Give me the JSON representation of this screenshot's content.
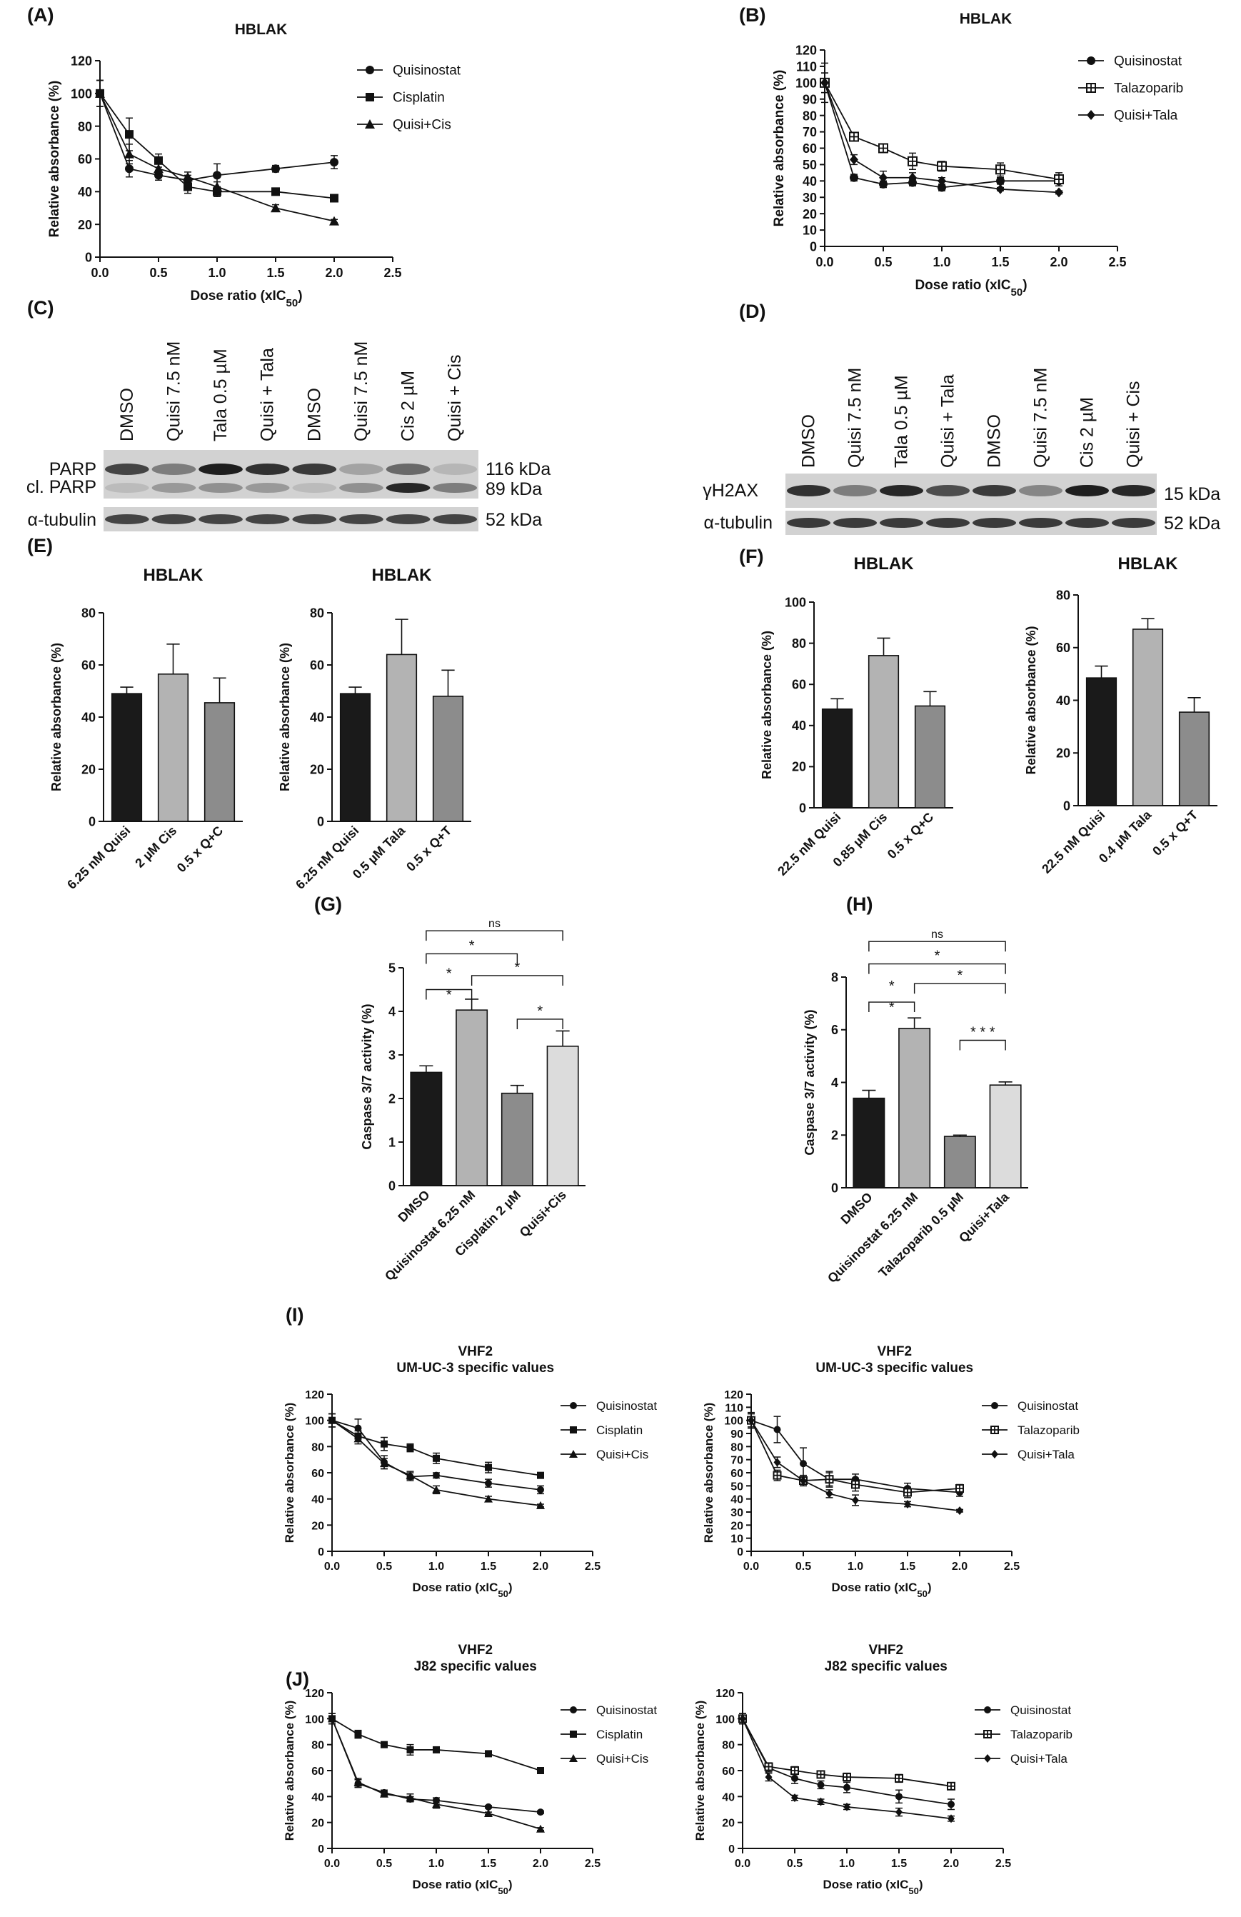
{
  "panel_labels": [
    "(A)",
    "(B)",
    "(C)",
    "(D)",
    "(E)",
    "(F)",
    "(G)",
    "(H)",
    "(I)",
    "(J)"
  ],
  "colors": {
    "black": "#1a1a1a",
    "dark_gray": "#555555",
    "mid_gray": "#8c8c8c",
    "light_gray": "#b3b3b3",
    "pale_gray": "#dcdcdc"
  },
  "chart_data": [
    {
      "id": "A",
      "type": "line",
      "title": "HBLAK",
      "xlabel": "Dose ratio (xIC",
      "xlabel_sub": "50",
      "xlabel_end": ")",
      "ylabel": "Relative absorbance (%)",
      "xlim": [
        0,
        2.5
      ],
      "ylim": [
        0,
        120
      ],
      "xticks": [
        "0.0",
        "0.5",
        "1.0",
        "1.5",
        "2.0",
        "2.5"
      ],
      "yticks": [
        "0",
        "20",
        "40",
        "60",
        "80",
        "100",
        "120"
      ],
      "legend": "right",
      "series": [
        {
          "name": "Quisinostat",
          "marker": "circle",
          "x": [
            0,
            0.25,
            0.5,
            0.75,
            1.0,
            1.5,
            2.0
          ],
          "y": [
            100,
            54,
            50,
            47,
            50,
            54,
            58
          ],
          "err": [
            8,
            5,
            3,
            3,
            7,
            2,
            4
          ]
        },
        {
          "name": "Cisplatin",
          "marker": "square",
          "x": [
            0,
            0.25,
            0.5,
            0.75,
            1.0,
            1.5,
            2.0
          ],
          "y": [
            100,
            75,
            59,
            43,
            40,
            40,
            36
          ],
          "err": [
            8,
            10,
            4,
            4,
            3,
            2,
            2
          ]
        },
        {
          "name": "Quisi+Cis",
          "marker": "triangle",
          "x": [
            0,
            0.25,
            0.5,
            0.75,
            1.0,
            1.5,
            2.0
          ],
          "y": [
            100,
            63,
            54,
            49,
            43,
            30,
            22
          ],
          "err": [
            8,
            6,
            4,
            3,
            3,
            2,
            1
          ]
        }
      ]
    },
    {
      "id": "B",
      "type": "line",
      "title": "HBLAK",
      "xlabel": "Dose ratio (xIC",
      "xlabel_sub": "50",
      "xlabel_end": ")",
      "ylabel": "Relative absorbance (%)",
      "xlim": [
        0,
        2.5
      ],
      "ylim": [
        0,
        120
      ],
      "xticks": [
        "0.0",
        "0.5",
        "1.0",
        "1.5",
        "2.0",
        "2.5"
      ],
      "yticks": [
        "0",
        "10",
        "20",
        "30",
        "40",
        "50",
        "60",
        "70",
        "80",
        "90",
        "100",
        "110",
        "120"
      ],
      "legend": "right",
      "series": [
        {
          "name": "Quisinostat",
          "marker": "circle",
          "x": [
            0,
            0.25,
            0.5,
            0.75,
            1.0,
            1.5,
            2.0
          ],
          "y": [
            100,
            42,
            38,
            39,
            36,
            40,
            40
          ],
          "err": [
            12,
            2,
            2,
            2,
            2,
            2,
            3
          ]
        },
        {
          "name": "Talazoparib",
          "marker": "boxsq",
          "x": [
            0,
            0.25,
            0.5,
            0.75,
            1.0,
            1.5,
            2.0
          ],
          "y": [
            100,
            67,
            60,
            52,
            49,
            47,
            41
          ],
          "err": [
            6,
            2,
            2,
            5,
            3,
            4,
            4
          ]
        },
        {
          "name": "Quisi+Tala",
          "marker": "diamond",
          "x": [
            0,
            0.25,
            0.5,
            0.75,
            1.0,
            1.5,
            2.0
          ],
          "y": [
            100,
            53,
            42,
            42,
            40,
            35,
            33
          ],
          "err": [
            6,
            3,
            4,
            3,
            2,
            1,
            1
          ]
        }
      ]
    },
    {
      "id": "E1",
      "type": "bar",
      "title": "HBLAK",
      "ylabel": "Relative absorbance (%)",
      "ylim": [
        0,
        80
      ],
      "yticks": [
        "0",
        "20",
        "40",
        "60",
        "80"
      ],
      "categories": [
        "6.25 nM Quisi",
        "2 µM Cis",
        "0.5 x Q+C"
      ],
      "values": [
        49,
        56.5,
        45.5
      ],
      "err": [
        2.5,
        11.5,
        9.5
      ],
      "bar_colors": [
        "#1a1a1a",
        "#b3b3b3",
        "#8c8c8c"
      ]
    },
    {
      "id": "E2",
      "type": "bar",
      "title": "HBLAK",
      "ylabel": "Relative absorbance (%)",
      "ylim": [
        0,
        80
      ],
      "yticks": [
        "0",
        "20",
        "40",
        "60",
        "80"
      ],
      "categories": [
        "6.25 nM Quisi",
        "0.5 µM Tala",
        "0.5 x Q+T"
      ],
      "values": [
        49,
        64,
        48
      ],
      "err": [
        2.5,
        13.5,
        10
      ],
      "bar_colors": [
        "#1a1a1a",
        "#b3b3b3",
        "#8c8c8c"
      ]
    },
    {
      "id": "F1",
      "type": "bar",
      "title": "HBLAK",
      "ylabel": "Relative absorbance (%)",
      "ylim": [
        0,
        100
      ],
      "yticks": [
        "0",
        "20",
        "40",
        "60",
        "80",
        "100"
      ],
      "categories": [
        "22.5 nM Quisi",
        "0.85 µM Cis",
        "0.5 x Q+C"
      ],
      "values": [
        48,
        74,
        49.5
      ],
      "err": [
        5,
        8.5,
        7
      ],
      "bar_colors": [
        "#1a1a1a",
        "#b3b3b3",
        "#8c8c8c"
      ]
    },
    {
      "id": "F2",
      "type": "bar",
      "title": "HBLAK",
      "ylabel": "Relative absorbance (%)",
      "ylim": [
        0,
        80
      ],
      "yticks": [
        "0",
        "20",
        "40",
        "60",
        "80"
      ],
      "categories": [
        "22.5 nM Quisi",
        "0.4 µM Tala",
        "0.5 x Q+T"
      ],
      "values": [
        48.5,
        67,
        35.5
      ],
      "err": [
        4.5,
        4,
        5.5
      ],
      "bar_colors": [
        "#1a1a1a",
        "#b3b3b3",
        "#8c8c8c"
      ]
    },
    {
      "id": "G",
      "type": "bar",
      "title": "",
      "ylabel": "Caspase 3/7 activity (%)",
      "ylim": [
        0,
        5
      ],
      "yticks": [
        "0",
        "1",
        "2",
        "3",
        "4",
        "5"
      ],
      "categories": [
        "DMSO",
        "Quisinostat 6.25 nM",
        "Cisplatin 2 µM",
        "Quisi+Cis"
      ],
      "values": [
        2.6,
        4.03,
        2.12,
        3.2
      ],
      "err": [
        0.15,
        0.25,
        0.18,
        0.35
      ],
      "bar_colors": [
        "#1a1a1a",
        "#b3b3b3",
        "#8c8c8c",
        "#dcdcdc"
      ],
      "brackets": [
        {
          "from": 0,
          "to": 3,
          "label": "ns",
          "y": 5.85
        },
        {
          "from": 0,
          "to": 2,
          "label": "*",
          "y": 5.32
        },
        {
          "from": 1,
          "to": 3,
          "label": "*",
          "y": 4.82
        },
        {
          "from": 0,
          "to": 1,
          "label": "* *",
          "y": 4.5
        },
        {
          "from": 2,
          "to": 3,
          "label": "*",
          "y": 3.82
        }
      ]
    },
    {
      "id": "H",
      "type": "bar",
      "title": "",
      "ylabel": "Caspase 3/7 activity (%)",
      "ylim": [
        0,
        8
      ],
      "yticks": [
        "0",
        "2",
        "4",
        "6",
        "8"
      ],
      "categories": [
        "DMSO",
        "Quisinostat 6.25 nM",
        "Talazoparib 0.5 µM",
        "Quisi+Tala"
      ],
      "values": [
        3.4,
        6.05,
        1.95,
        3.9
      ],
      "err": [
        0.3,
        0.4,
        0.05,
        0.12
      ],
      "bar_colors": [
        "#1a1a1a",
        "#b3b3b3",
        "#8c8c8c",
        "#dcdcdc"
      ],
      "brackets": [
        {
          "from": 0,
          "to": 3,
          "label": "ns",
          "y": 9.35
        },
        {
          "from": 0,
          "to": 3,
          "label": "*",
          "y": 8.5
        },
        {
          "from": 1,
          "to": 3,
          "label": "*",
          "y": 7.75
        },
        {
          "from": 0,
          "to": 1,
          "label": "* *",
          "y": 7.05
        },
        {
          "from": 2,
          "to": 3,
          "label": "* * *",
          "y": 5.6
        }
      ]
    },
    {
      "id": "I1",
      "type": "line",
      "title": "VHF2\nUM-UC-3 specific values",
      "xlabel": "Dose ratio (xIC",
      "xlabel_sub": "50",
      "xlabel_end": ")",
      "ylabel": "Relative absorbance (%)",
      "xlim": [
        0,
        2.5
      ],
      "ylim": [
        0,
        120
      ],
      "xticks": [
        "0.0",
        "0.5",
        "1.0",
        "1.5",
        "2.0",
        "2.5"
      ],
      "yticks": [
        "0",
        "20",
        "40",
        "60",
        "80",
        "100",
        "120"
      ],
      "legend": "right",
      "series": [
        {
          "name": "Quisinostat",
          "marker": "circle",
          "x": [
            0,
            0.25,
            0.5,
            0.75,
            1.0,
            1.5,
            2.0
          ],
          "y": [
            100,
            94,
            68,
            57,
            58,
            52,
            47
          ],
          "err": [
            5,
            7,
            5,
            3,
            2,
            3,
            3
          ]
        },
        {
          "name": "Cisplatin",
          "marker": "square",
          "x": [
            0,
            0.25,
            0.5,
            0.75,
            1.0,
            1.5,
            2.0
          ],
          "y": [
            100,
            88,
            82,
            79,
            71,
            64,
            58
          ],
          "err": [
            5,
            4,
            5,
            3,
            4,
            4,
            2
          ]
        },
        {
          "name": "Quisi+Cis",
          "marker": "triangle",
          "x": [
            0,
            0.25,
            0.5,
            0.75,
            1.0,
            1.5,
            2.0
          ],
          "y": [
            100,
            86,
            67,
            58,
            47,
            40,
            35
          ],
          "err": [
            5,
            4,
            4,
            3,
            3,
            2,
            1
          ]
        }
      ]
    },
    {
      "id": "I2",
      "type": "line",
      "title": "VHF2\nUM-UC-3 specific values",
      "xlabel": "Dose ratio (xIC",
      "xlabel_sub": "50",
      "xlabel_end": ")",
      "ylabel": "Relative absorbance (%)",
      "xlim": [
        0,
        2.5
      ],
      "ylim": [
        0,
        120
      ],
      "xticks": [
        "0.0",
        "0.5",
        "1.0",
        "1.5",
        "2.0",
        "2.5"
      ],
      "yticks": [
        "0",
        "10",
        "20",
        "30",
        "40",
        "50",
        "60",
        "70",
        "80",
        "90",
        "100",
        "110",
        "120"
      ],
      "legend": "right",
      "series": [
        {
          "name": "Quisinostat",
          "marker": "circle",
          "x": [
            0,
            0.25,
            0.5,
            0.75,
            1.0,
            1.5,
            2.0
          ],
          "y": [
            100,
            93,
            67,
            55,
            55,
            48,
            45
          ],
          "err": [
            6,
            10,
            12,
            6,
            4,
            4,
            3
          ]
        },
        {
          "name": "Talazoparib",
          "marker": "boxsq",
          "x": [
            0,
            0.25,
            0.5,
            0.75,
            1.0,
            1.5,
            2.0
          ],
          "y": [
            100,
            58,
            54,
            55,
            51,
            45,
            48
          ],
          "err": [
            5,
            4,
            4,
            5,
            5,
            4,
            3
          ]
        },
        {
          "name": "Quisi+Tala",
          "marker": "diamond",
          "x": [
            0,
            0.25,
            0.5,
            0.75,
            1.0,
            1.5,
            2.0
          ],
          "y": [
            100,
            68,
            54,
            44,
            39,
            36,
            31
          ],
          "err": [
            5,
            4,
            3,
            3,
            4,
            2,
            1
          ]
        }
      ]
    },
    {
      "id": "J1",
      "type": "line",
      "title": "VHF2\nJ82 specific values",
      "xlabel": "Dose ratio (xIC",
      "xlabel_sub": "50",
      "xlabel_end": ")",
      "ylabel": "Relative absorbance (%)",
      "xlim": [
        0,
        2.5
      ],
      "ylim": [
        0,
        120
      ],
      "xticks": [
        "0.0",
        "0.5",
        "1.0",
        "1.5",
        "2.0",
        "2.5"
      ],
      "yticks": [
        "0",
        "20",
        "40",
        "60",
        "80",
        "100",
        "120"
      ],
      "legend": "right",
      "series": [
        {
          "name": "Quisinostat",
          "marker": "circle",
          "x": [
            0,
            0.25,
            0.5,
            0.75,
            1.0,
            1.5,
            2.0
          ],
          "y": [
            100,
            50,
            43,
            38,
            37,
            32,
            28
          ],
          "err": [
            4,
            3,
            2,
            2,
            2,
            1,
            1
          ]
        },
        {
          "name": "Cisplatin",
          "marker": "square",
          "x": [
            0,
            0.25,
            0.5,
            0.75,
            1.0,
            1.5,
            2.0
          ],
          "y": [
            100,
            88,
            80,
            76,
            76,
            73,
            60
          ],
          "err": [
            4,
            3,
            2,
            4,
            2,
            2,
            2
          ]
        },
        {
          "name": "Quisi+Cis",
          "marker": "triangle",
          "x": [
            0,
            0.25,
            0.5,
            0.75,
            1.0,
            1.5,
            2.0
          ],
          "y": [
            100,
            51,
            42,
            39,
            34,
            27,
            15
          ],
          "err": [
            4,
            3,
            2,
            3,
            3,
            1,
            1
          ]
        }
      ]
    },
    {
      "id": "J2",
      "type": "line",
      "title": "VHF2\nJ82 specific values",
      "xlabel": "Dose ratio (xIC",
      "xlabel_sub": "50",
      "xlabel_end": ")",
      "ylabel": "Relative absorbance (%)",
      "xlim": [
        0,
        2.5
      ],
      "ylim": [
        0,
        120
      ],
      "xticks": [
        "0.0",
        "0.5",
        "1.0",
        "1.5",
        "2.0",
        "2.5"
      ],
      "yticks": [
        "0",
        "20",
        "40",
        "60",
        "80",
        "100",
        "120"
      ],
      "legend": "right",
      "series": [
        {
          "name": "Quisinostat",
          "marker": "circle",
          "x": [
            0,
            0.25,
            0.5,
            0.75,
            1.0,
            1.5,
            2.0
          ],
          "y": [
            100,
            62,
            54,
            49,
            47,
            40,
            34
          ],
          "err": [
            4,
            3,
            4,
            3,
            4,
            5,
            4
          ]
        },
        {
          "name": "Talazoparib",
          "marker": "boxsq",
          "x": [
            0,
            0.25,
            0.5,
            0.75,
            1.0,
            1.5,
            2.0
          ],
          "y": [
            100,
            63,
            60,
            57,
            55,
            54,
            48
          ],
          "err": [
            4,
            3,
            3,
            2,
            3,
            3,
            2
          ]
        },
        {
          "name": "Quisi+Tala",
          "marker": "diamond",
          "x": [
            0,
            0.25,
            0.5,
            0.75,
            1.0,
            1.5,
            2.0
          ],
          "y": [
            100,
            55,
            39,
            36,
            32,
            28,
            23
          ],
          "err": [
            4,
            3,
            2,
            2,
            2,
            3,
            2
          ]
        }
      ]
    }
  ],
  "blots": [
    {
      "id": "C",
      "lanes": [
        "DMSO",
        "Quisi 7.5 nM",
        "Tala 0.5 µM",
        "Quisi + Tala",
        "DMSO",
        "Quisi 7.5 nM",
        "Cis 2 µM",
        "Quisi + Cis"
      ],
      "left_labels": [
        "PARP",
        "cl. PARP",
        "α-tubulin"
      ],
      "right_labels": [
        "116 kDa",
        "89 kDa",
        "52 kDa"
      ],
      "parp_intensity": [
        0.75,
        0.45,
        0.95,
        0.85,
        0.8,
        0.25,
        0.55,
        0.15
      ],
      "clparp_intensity": [
        0.12,
        0.3,
        0.35,
        0.3,
        0.12,
        0.35,
        0.9,
        0.45
      ]
    },
    {
      "id": "D",
      "lanes": [
        "DMSO",
        "Quisi 7.5 nM",
        "Tala 0.5 µM",
        "Quisi + Tala",
        "DMSO",
        "Quisi 7.5 nM",
        "Cis 2 µM",
        "Quisi + Cis"
      ],
      "left_labels": [
        "γH2AX",
        "α-tubulin"
      ],
      "right_labels": [
        "15 kDa",
        "52 kDa"
      ],
      "h2ax_intensity": [
        0.85,
        0.45,
        0.9,
        0.7,
        0.8,
        0.4,
        0.95,
        0.9
      ]
    }
  ]
}
